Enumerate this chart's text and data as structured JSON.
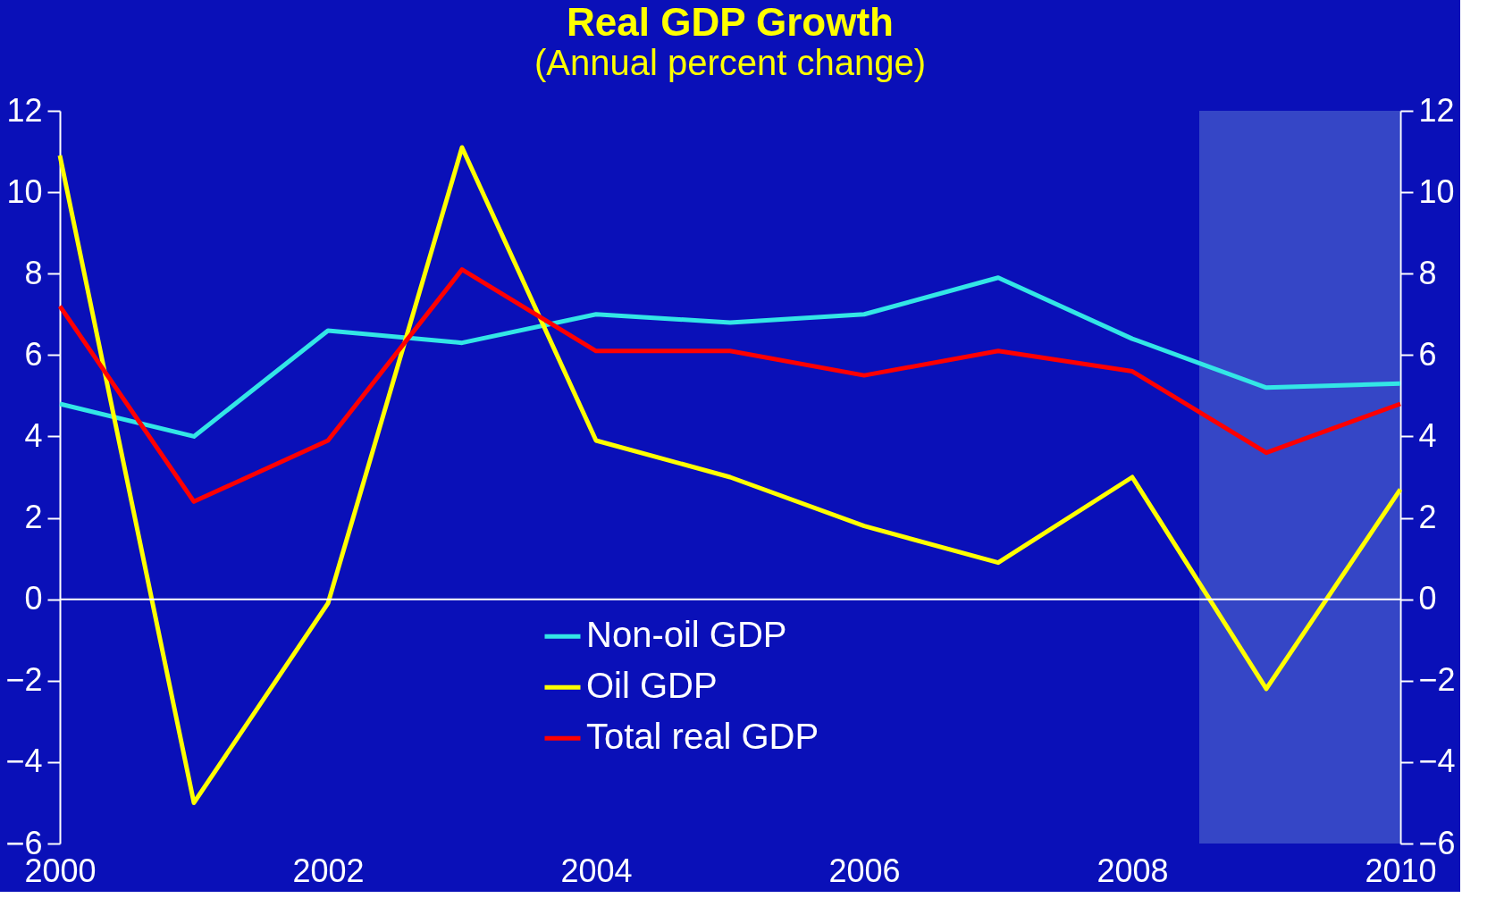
{
  "chart_data": {
    "type": "line",
    "title": "Real GDP Growth",
    "subtitle": "(Annual percent change)",
    "x": [
      2000,
      2001,
      2002,
      2003,
      2004,
      2005,
      2006,
      2007,
      2008,
      2009,
      2010
    ],
    "series": [
      {
        "name": "Non-oil GDP",
        "color": "#33e6e6",
        "values": [
          4.8,
          4.0,
          6.6,
          6.3,
          7.0,
          6.8,
          7.0,
          7.9,
          6.4,
          5.2,
          5.3
        ]
      },
      {
        "name": "Oil GDP",
        "color": "#ffff00",
        "values": [
          10.9,
          -5.0,
          -0.1,
          11.1,
          3.9,
          3.0,
          1.8,
          0.9,
          3.0,
          -2.2,
          2.7
        ]
      },
      {
        "name": "Total real GDP",
        "color": "#ff0000",
        "values": [
          7.2,
          2.4,
          3.9,
          8.1,
          6.1,
          6.1,
          5.5,
          6.1,
          5.6,
          3.6,
          4.8
        ]
      }
    ],
    "xlim": [
      2000,
      2010
    ],
    "xticks": [
      2000,
      2002,
      2004,
      2006,
      2008,
      2010
    ],
    "ylim": [
      -6,
      12
    ],
    "yticks": [
      -6,
      -4,
      -2,
      0,
      2,
      4,
      6,
      8,
      10,
      12
    ],
    "y2lim": [
      -6,
      12
    ],
    "y2ticks": [
      -6,
      -4,
      -2,
      0,
      2,
      4,
      6,
      8,
      10,
      12
    ],
    "ref_lines": [
      {
        "axis": "y",
        "value": 0,
        "color": "#ffffff"
      }
    ],
    "bands": [
      {
        "axis": "x",
        "from": 2008.5,
        "to": 2010,
        "color": "#6a8ad8"
      }
    ],
    "grid": false,
    "legend": "bottom",
    "marker": "none",
    "line_style": "solid"
  }
}
